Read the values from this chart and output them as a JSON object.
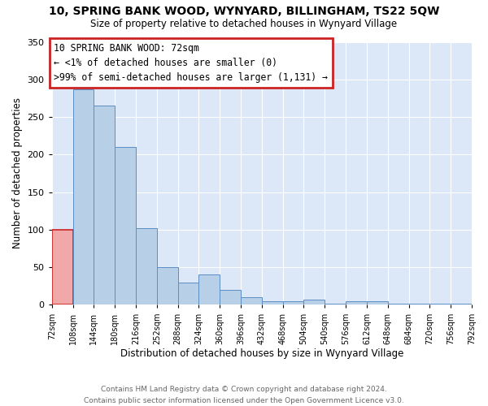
{
  "title": "10, SPRING BANK WOOD, WYNYARD, BILLINGHAM, TS22 5QW",
  "subtitle": "Size of property relative to detached houses in Wynyard Village",
  "xlabel": "Distribution of detached houses by size in Wynyard Village",
  "ylabel": "Number of detached properties",
  "footer_line1": "Contains HM Land Registry data © Crown copyright and database right 2024.",
  "footer_line2": "Contains public sector information licensed under the Open Government Licence v3.0.",
  "bin_edges": [
    72,
    108,
    144,
    180,
    216,
    252,
    288,
    324,
    360,
    396,
    432,
    468,
    504,
    540,
    576,
    612,
    648,
    684,
    720,
    756,
    792
  ],
  "bar_heights": [
    100,
    287,
    265,
    210,
    102,
    50,
    30,
    40,
    20,
    10,
    5,
    5,
    7,
    2,
    5,
    5,
    2,
    2,
    2,
    2
  ],
  "bar_color": "#b8cfe8",
  "bar_edge_color": "#5b8ec4",
  "highlight_bar_color": "#f0a8a8",
  "highlight_bar_edge_color": "#cc2222",
  "highlight_bin_index": 0,
  "annotation_line1": "10 SPRING BANK WOOD: 72sqm",
  "annotation_line2": "← <1% of detached houses are smaller (0)",
  "annotation_line3": ">99% of semi-detached houses are larger (1,131) →",
  "annotation_box_color": "#cc2222",
  "ylim": [
    0,
    350
  ],
  "yticks": [
    0,
    50,
    100,
    150,
    200,
    250,
    300,
    350
  ],
  "bg_color": "#ffffff",
  "plot_bg_color": "#dce8f8"
}
